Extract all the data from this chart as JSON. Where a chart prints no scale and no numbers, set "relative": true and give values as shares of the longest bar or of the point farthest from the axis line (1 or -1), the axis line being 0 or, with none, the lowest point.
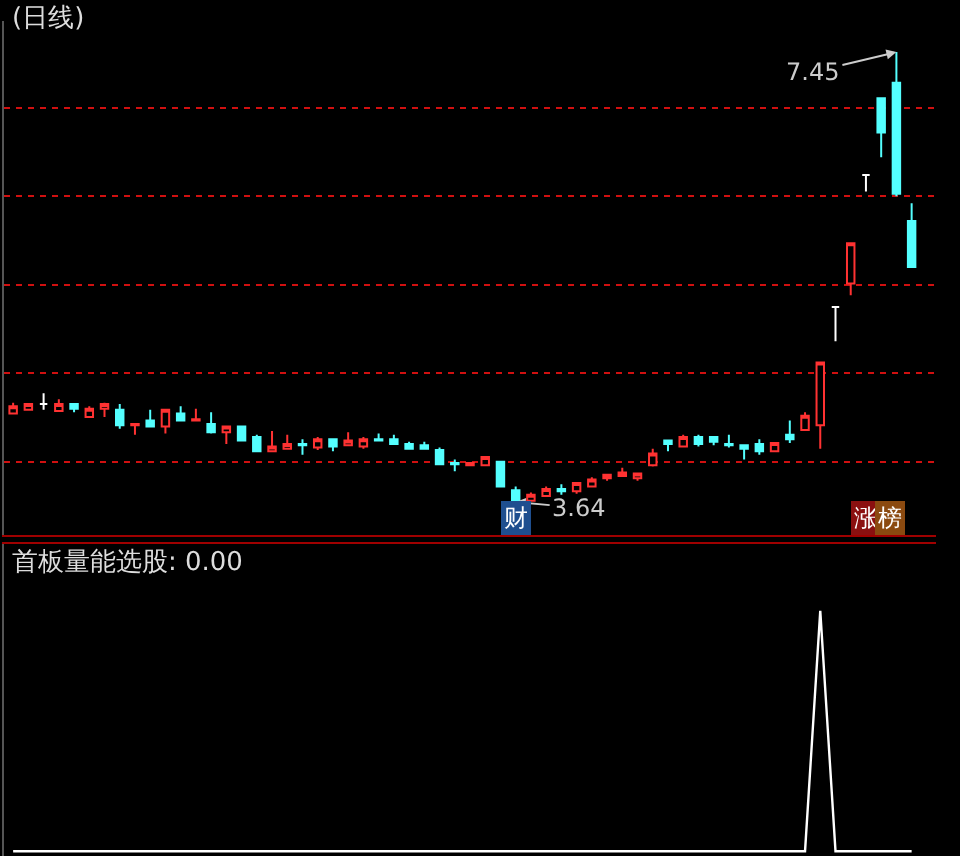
{
  "chart_data": [
    {
      "type": "candlestick",
      "title": "(日线)",
      "categories": [
        null,
        null,
        null,
        null,
        null,
        null,
        null,
        null,
        null,
        null,
        null,
        null,
        null,
        null,
        null,
        null,
        null,
        null,
        null,
        null,
        null,
        null,
        null,
        null,
        null,
        null,
        null,
        null,
        null,
        null,
        null,
        null,
        null,
        null,
        null,
        null,
        null,
        null,
        null,
        null,
        null,
        null,
        null,
        null,
        null,
        null,
        null,
        null,
        null,
        null,
        null,
        null,
        null,
        null,
        null,
        null,
        null,
        null,
        null,
        null
      ],
      "ohlc": [
        [
          4.39,
          4.48,
          4.39,
          4.45
        ],
        [
          4.42,
          4.47,
          4.42,
          4.47
        ],
        [
          4.47,
          4.56,
          4.42,
          4.47
        ],
        [
          4.41,
          4.51,
          4.41,
          4.47
        ],
        [
          4.47,
          4.47,
          4.4,
          4.43
        ],
        [
          4.36,
          4.45,
          4.36,
          4.43
        ],
        [
          4.43,
          4.48,
          4.36,
          4.47
        ],
        [
          4.42,
          4.47,
          4.26,
          4.29
        ],
        [
          4.29,
          4.3,
          4.21,
          4.3
        ],
        [
          4.33,
          4.42,
          4.27,
          4.28
        ],
        [
          4.28,
          4.42,
          4.22,
          4.42
        ],
        [
          4.39,
          4.45,
          4.33,
          4.33
        ],
        [
          4.33,
          4.43,
          4.33,
          4.34
        ],
        [
          4.3,
          4.4,
          4.22,
          4.23
        ],
        [
          4.23,
          4.28,
          4.13,
          4.28
        ],
        [
          4.28,
          4.28,
          4.16,
          4.16
        ],
        [
          4.19,
          4.21,
          4.06,
          4.07
        ],
        [
          4.07,
          4.24,
          4.06,
          4.11
        ],
        [
          4.09,
          4.21,
          4.09,
          4.13
        ],
        [
          4.13,
          4.17,
          4.04,
          4.12
        ],
        [
          4.1,
          4.19,
          4.08,
          4.17
        ],
        [
          4.17,
          4.17,
          4.07,
          4.11
        ],
        [
          4.12,
          4.23,
          4.12,
          4.16
        ],
        [
          4.11,
          4.19,
          4.09,
          4.17
        ],
        [
          4.17,
          4.22,
          4.16,
          4.16
        ],
        [
          4.17,
          4.21,
          4.13,
          4.13
        ],
        [
          4.13,
          4.15,
          4.09,
          4.09
        ],
        [
          4.12,
          4.15,
          4.09,
          4.09
        ],
        [
          4.08,
          4.1,
          3.96,
          3.96
        ],
        [
          3.97,
          4.0,
          3.9,
          3.96
        ],
        [
          3.95,
          3.97,
          3.95,
          3.97
        ],
        [
          3.95,
          4.02,
          3.95,
          4.02
        ],
        [
          3.98,
          3.98,
          3.77,
          3.77
        ],
        [
          3.74,
          3.77,
          3.64,
          3.65
        ],
        [
          3.65,
          3.72,
          3.65,
          3.7
        ],
        [
          3.69,
          3.77,
          3.69,
          3.75
        ],
        [
          3.75,
          3.79,
          3.7,
          3.73
        ],
        [
          3.73,
          3.8,
          3.71,
          3.8
        ],
        [
          3.77,
          3.85,
          3.77,
          3.83
        ],
        [
          3.84,
          3.87,
          3.82,
          3.87
        ],
        [
          3.86,
          3.93,
          3.86,
          3.89
        ],
        [
          3.84,
          3.88,
          3.82,
          3.88
        ],
        [
          3.95,
          4.09,
          3.94,
          4.05
        ],
        [
          4.16,
          4.16,
          4.07,
          4.13
        ],
        [
          4.11,
          4.21,
          4.11,
          4.19
        ],
        [
          4.19,
          4.21,
          4.11,
          4.13
        ],
        [
          4.19,
          4.19,
          4.12,
          4.15
        ],
        [
          4.13,
          4.21,
          4.1,
          4.12
        ],
        [
          4.12,
          4.12,
          4.0,
          4.09
        ],
        [
          4.13,
          4.17,
          4.04,
          4.07
        ],
        [
          4.07,
          4.14,
          4.07,
          4.14
        ],
        [
          4.21,
          4.33,
          4.14,
          4.17
        ],
        [
          4.25,
          4.4,
          4.25,
          4.37
        ],
        [
          4.29,
          4.82,
          4.09,
          4.82
        ],
        [
          5.29,
          5.29,
          5.0,
          5.29
        ],
        [
          5.49,
          5.83,
          5.39,
          5.83
        ],
        [
          6.41,
          6.41,
          6.27,
          6.41
        ],
        [
          7.06,
          7.06,
          6.56,
          6.77
        ],
        [
          7.19,
          7.45,
          6.23,
          6.25
        ],
        [
          6.02,
          6.17,
          5.63,
          5.63
        ]
      ],
      "colors": [
        "#ff3232",
        "#ff3232",
        "#ffffff",
        "#ff3232",
        "#54ffff",
        "#ff3232",
        "#ff3232",
        "#54ffff",
        "#ff3232",
        "#54ffff",
        "#ff3232",
        "#54ffff",
        "#ff3232",
        "#54ffff",
        "#ff3232",
        "#54ffff",
        "#54ffff",
        "#ff3232",
        "#ff3232",
        "#54ffff",
        "#ff3232",
        "#54ffff",
        "#ff3232",
        "#ff3232",
        "#54ffff",
        "#54ffff",
        "#54ffff",
        "#54ffff",
        "#54ffff",
        "#54ffff",
        "#ff3232",
        "#ff3232",
        "#54ffff",
        "#54ffff",
        "#ff3232",
        "#ff3232",
        "#54ffff",
        "#ff3232",
        "#ff3232",
        "#ff3232",
        "#ff3232",
        "#ff3232",
        "#ff3232",
        "#54ffff",
        "#ff3232",
        "#54ffff",
        "#54ffff",
        "#54ffff",
        "#54ffff",
        "#54ffff",
        "#ff3232",
        "#54ffff",
        "#ff3232",
        "#ff3232",
        "#ffffff",
        "#ff3232",
        "#ffffff",
        "#54ffff",
        "#54ffff",
        "#54ffff"
      ],
      "ylim": [
        3.36,
        7.71
      ],
      "yticks": [
        {
          "value": 3.98,
          "label": null
        },
        {
          "value": 4.73,
          "label": null
        },
        {
          "value": 5.48,
          "label": null
        },
        {
          "value": 6.23,
          "label": null
        },
        {
          "value": 6.98,
          "label": null
        }
      ],
      "grid": "y",
      "annotations": [
        "7.45",
        "3.64",
        "财",
        "涨",
        "榜"
      ]
    },
    {
      "type": "line",
      "title": "首板量能选股: 0.00",
      "relative": true,
      "color": "#ffffff",
      "categories": [
        null,
        null,
        null,
        null,
        null,
        null,
        null,
        null,
        null,
        null,
        null,
        null,
        null,
        null,
        null,
        null,
        null,
        null,
        null,
        null,
        null,
        null,
        null,
        null,
        null,
        null,
        null,
        null,
        null,
        null,
        null,
        null,
        null,
        null,
        null,
        null,
        null,
        null,
        null,
        null,
        null,
        null,
        null,
        null,
        null,
        null,
        null,
        null,
        null,
        null,
        null,
        null,
        null,
        null,
        null,
        null,
        null,
        null,
        null,
        null
      ],
      "values": [
        0,
        0,
        0,
        0,
        0,
        0,
        0,
        0,
        0,
        0,
        0,
        0,
        0,
        0,
        0,
        0,
        0,
        0,
        0,
        0,
        0,
        0,
        0,
        0,
        0,
        0,
        0,
        0,
        0,
        0,
        0,
        0,
        0,
        0,
        0,
        0,
        0,
        0,
        0,
        0,
        0,
        0,
        0,
        0,
        0,
        0,
        0,
        0,
        0,
        0,
        0,
        0,
        0,
        1,
        0,
        0,
        0,
        0,
        0,
        0
      ],
      "marker": "none"
    }
  ]
}
